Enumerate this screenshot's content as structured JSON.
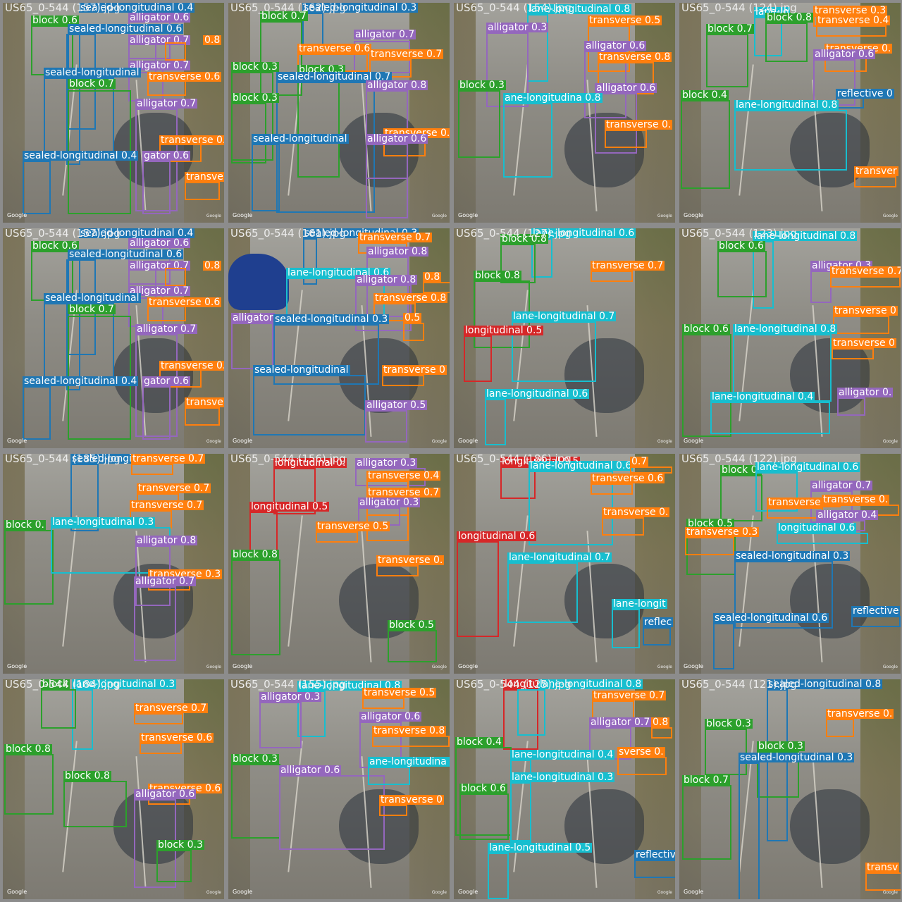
{
  "colors": {
    "block": "#2ca02c",
    "alligator": "#9467bd",
    "transverse": "#ff7f0e",
    "sealed-longitudinal": "#1f77b4",
    "lane-longitudinal": "#17becf",
    "longitudinal": "#d62728",
    "reflective": "#1f77b4"
  },
  "watermark": "Google",
  "tiles": [
    {
      "title": "US65_0-544 (157).jpg",
      "detections": [
        {
          "cls": "block",
          "text": "block 0.6"
        },
        {
          "cls": "sealed-longitudinal",
          "text": "sealed-longitudinal 0.4"
        },
        {
          "cls": "alligator",
          "text": "alligator 0.6"
        },
        {
          "cls": "sealed-longitudinal",
          "text": "sealed-longitudinal 0.6"
        },
        {
          "cls": "alligator",
          "text": "alligator 0.7"
        },
        {
          "cls": "transverse",
          "text": "0.8"
        },
        {
          "cls": "alligator",
          "text": "alligator 0.7"
        },
        {
          "cls": "sealed-longitudinal",
          "text": "sealed-longitudinal"
        },
        {
          "cls": "transverse",
          "text": "transverse 0.6"
        },
        {
          "cls": "block",
          "text": "block 0.7"
        },
        {
          "cls": "alligator",
          "text": "alligator 0.7"
        },
        {
          "cls": "transverse",
          "text": "transverse 0."
        },
        {
          "cls": "sealed-longitudinal",
          "text": "sealed-longitudinal 0.4"
        },
        {
          "cls": "alligator",
          "text": "gator 0.6"
        },
        {
          "cls": "transverse",
          "text": "transve"
        }
      ]
    },
    {
      "title": "US65_0-544 (162).jpg",
      "detections": [
        {
          "cls": "sealed-longitudinal",
          "text": "sealed-longitudinal 0.3"
        },
        {
          "cls": "block",
          "text": "block 0.7"
        },
        {
          "cls": "alligator",
          "text": "alligator 0.7"
        },
        {
          "cls": "transverse",
          "text": "transverse 0.6"
        },
        {
          "cls": "transverse",
          "text": "transverse 0.7"
        },
        {
          "cls": "block",
          "text": "block 0.3"
        },
        {
          "cls": "block",
          "text": "block 0.3"
        },
        {
          "cls": "sealed-longitudinal",
          "text": "sealed-longitudinal 0.7"
        },
        {
          "cls": "alligator",
          "text": "alligator 0.8"
        },
        {
          "cls": "block",
          "text": "block 0.3"
        },
        {
          "cls": "transverse",
          "text": "transverse 0."
        },
        {
          "cls": "sealed-longitudinal",
          "text": "sealed-longitudinal"
        },
        {
          "cls": "alligator",
          "text": "alligator 0.6"
        }
      ]
    },
    {
      "title": "US65_0-544 (154).jpg",
      "detections": [
        {
          "cls": "lane-longitudinal",
          "text": "lane-longitudinal 0.8"
        },
        {
          "cls": "alligator",
          "text": "alligator 0.3"
        },
        {
          "cls": "transverse",
          "text": "transverse 0.5"
        },
        {
          "cls": "alligator",
          "text": "alligator 0.6"
        },
        {
          "cls": "transverse",
          "text": "transverse 0.8"
        },
        {
          "cls": "block",
          "text": "block 0.3"
        },
        {
          "cls": "alligator",
          "text": "alligator 0.6"
        },
        {
          "cls": "lane-longitudinal",
          "text": "ane-longitudina 0.8"
        },
        {
          "cls": "transverse",
          "text": "transverse 0."
        }
      ]
    },
    {
      "title": "US65_0-544 (124).jpg",
      "detections": [
        {
          "cls": "transverse",
          "text": "transverse 0.3"
        },
        {
          "cls": "lane-longitudinal",
          "text": "lane-lo"
        },
        {
          "cls": "block",
          "text": "block 0.7"
        },
        {
          "cls": "transverse",
          "text": "transverse 0.4"
        },
        {
          "cls": "block",
          "text": "block 0.8"
        },
        {
          "cls": "transverse",
          "text": "transverse 0."
        },
        {
          "cls": "alligator",
          "text": "alligator 0.6"
        },
        {
          "cls": "reflective",
          "text": "reflective 0"
        },
        {
          "cls": "block",
          "text": "block 0.4"
        },
        {
          "cls": "lane-longitudinal",
          "text": "lane-longitudinal 0.8"
        },
        {
          "cls": "transverse",
          "text": "transver"
        }
      ]
    },
    {
      "title": "US65_0-544 (157).jpg",
      "detections": [
        {
          "cls": "block",
          "text": "block 0.6"
        },
        {
          "cls": "sealed-longitudinal",
          "text": "sealed-longitudinal 0.4"
        },
        {
          "cls": "alligator",
          "text": "alligator 0.6"
        },
        {
          "cls": "sealed-longitudinal",
          "text": "sealed-longitudinal 0.6"
        },
        {
          "cls": "alligator",
          "text": "alligator 0.7"
        },
        {
          "cls": "transverse",
          "text": "0.8"
        },
        {
          "cls": "alligator",
          "text": "alligator 0.7"
        },
        {
          "cls": "sealed-longitudinal",
          "text": "sealed-longitudinal"
        },
        {
          "cls": "transverse",
          "text": "transverse 0.6"
        },
        {
          "cls": "block",
          "text": "block 0.7"
        },
        {
          "cls": "alligator",
          "text": "alligator 0.7"
        },
        {
          "cls": "transverse",
          "text": "transverse 0."
        },
        {
          "cls": "sealed-longitudinal",
          "text": "sealed-longitudinal 0.4"
        },
        {
          "cls": "alligator",
          "text": "gator 0.6"
        },
        {
          "cls": "transverse",
          "text": "transve"
        }
      ]
    },
    {
      "title": "US65_0-544 (161).jpg",
      "detections": [
        {
          "cls": "sealed-longitudinal",
          "text": "sealed-longitudinal 0.3"
        },
        {
          "cls": "transverse",
          "text": "transverse 0.7"
        },
        {
          "cls": "alligator",
          "text": "alligator 0.8"
        },
        {
          "cls": "lane-longitudinal",
          "text": "lane-longitudinal 0.6"
        },
        {
          "cls": "alligator",
          "text": "alligator 0.8"
        },
        {
          "cls": "transverse",
          "text": "0.8"
        },
        {
          "cls": "transverse",
          "text": "transverse 0.8"
        },
        {
          "cls": "alligator",
          "text": "alligator"
        },
        {
          "cls": "sealed-longitudinal",
          "text": "sealed-longitudinal 0.3"
        },
        {
          "cls": "transverse",
          "text": "0.5"
        },
        {
          "cls": "sealed-longitudinal",
          "text": "sealed-longitudinal"
        },
        {
          "cls": "transverse",
          "text": "transverse 0"
        },
        {
          "cls": "alligator",
          "text": "alligator 0.5"
        }
      ]
    },
    {
      "title": "US65_0-544 (127).jpg",
      "detections": [
        {
          "cls": "lane-longitudinal",
          "text": "lane-longitudinal 0.6"
        },
        {
          "cls": "block",
          "text": "block 0.8"
        },
        {
          "cls": "transverse",
          "text": "transverse 0.7"
        },
        {
          "cls": "block",
          "text": "block 0.8"
        },
        {
          "cls": "lane-longitudinal",
          "text": "lane-longitudinal 0.7"
        },
        {
          "cls": "longitudinal",
          "text": "longitudinal 0.5"
        },
        {
          "cls": "lane-longitudinal",
          "text": "lane-longitudinal 0.6"
        }
      ]
    },
    {
      "title": "US65_0-544 (123).jpg",
      "detections": [
        {
          "cls": "lane-longitudinal",
          "text": "lane-longitudinal 0.8"
        },
        {
          "cls": "block",
          "text": "block 0.6"
        },
        {
          "cls": "alligator",
          "text": "alligator 0.3"
        },
        {
          "cls": "transverse",
          "text": "transverse 0.7"
        },
        {
          "cls": "transverse",
          "text": "transverse 0"
        },
        {
          "cls": "block",
          "text": "block 0.6"
        },
        {
          "cls": "lane-longitudinal",
          "text": "lane-longitudinal 0.8"
        },
        {
          "cls": "transverse",
          "text": "transverse 0"
        },
        {
          "cls": "lane-longitudinal",
          "text": "lane-longitudinal 0.4"
        },
        {
          "cls": "alligator",
          "text": "alligator 0."
        }
      ]
    },
    {
      "title": "US65_0-544 (185).jpg",
      "detections": [
        {
          "cls": "sealed-longitudinal",
          "text": "sealed-longitudinal 0.3"
        },
        {
          "cls": "transverse",
          "text": "transverse 0.7"
        },
        {
          "cls": "transverse",
          "text": "transverse 0.7"
        },
        {
          "cls": "transverse",
          "text": "transverse 0.7"
        },
        {
          "cls": "block",
          "text": "block 0."
        },
        {
          "cls": "lane-longitudinal",
          "text": "lane-longitudinal 0.3"
        },
        {
          "cls": "alligator",
          "text": "alligator 0.8"
        },
        {
          "cls": "transverse",
          "text": "transverse 0.3"
        },
        {
          "cls": "alligator",
          "text": "alligator 0.7"
        }
      ]
    },
    {
      "title": "US65_0-544 (156).jpg",
      "detections": [
        {
          "cls": "longitudinal",
          "text": "longitudinal 0."
        },
        {
          "cls": "alligator",
          "text": "alligator 0.3"
        },
        {
          "cls": "transverse",
          "text": "transverse 0.4"
        },
        {
          "cls": "transverse",
          "text": "transverse 0.7"
        },
        {
          "cls": "alligator",
          "text": "alligator 0.3"
        },
        {
          "cls": "longitudinal",
          "text": "longitudinal 0.5"
        },
        {
          "cls": "transverse",
          "text": "transverse 0.5"
        },
        {
          "cls": "block",
          "text": "block 0.8"
        },
        {
          "cls": "transverse",
          "text": "transverse 0."
        },
        {
          "cls": "block",
          "text": "block 0.5"
        }
      ]
    },
    {
      "title": "US65_0-544 (186).jpg",
      "detections": [
        {
          "cls": "longitudinal",
          "text": "longitudinal 0.5"
        },
        {
          "cls": "lane-longitudinal",
          "text": "lane-longitudinal 0.6"
        },
        {
          "cls": "transverse",
          "text": "0.7"
        },
        {
          "cls": "transverse",
          "text": "transverse 0.6"
        },
        {
          "cls": "transverse",
          "text": "transverse 0."
        },
        {
          "cls": "longitudinal",
          "text": "longitudinal 0.6"
        },
        {
          "cls": "lane-longitudinal",
          "text": "lane-longitudinal 0.7"
        },
        {
          "cls": "lane-longitudinal",
          "text": "lane-longit"
        },
        {
          "cls": "reflective",
          "text": "reflec"
        }
      ]
    },
    {
      "title": "US65_0-544 (122).jpg",
      "detections": [
        {
          "cls": "block",
          "text": "block 0."
        },
        {
          "cls": "lane-longitudinal",
          "text": "lane-longitudinal 0.6"
        },
        {
          "cls": "alligator",
          "text": "alligator 0.7"
        },
        {
          "cls": "transverse",
          "text": "transverse 0.5"
        },
        {
          "cls": "transverse",
          "text": "transverse 0."
        },
        {
          "cls": "alligator",
          "text": "alligator 0.4"
        },
        {
          "cls": "block",
          "text": "block 0.5"
        },
        {
          "cls": "transverse",
          "text": "transverse 0.3"
        },
        {
          "cls": "lane-longitudinal",
          "text": "longitudinal 0.6"
        },
        {
          "cls": "sealed-longitudinal",
          "text": "sealed-longitudinal 0.3"
        },
        {
          "cls": "reflective",
          "text": "reflective"
        },
        {
          "cls": "sealed-longitudinal",
          "text": "sealed-longitudinal 0.6"
        }
      ]
    },
    {
      "title": "US65_0-544 (184).jpg",
      "detections": [
        {
          "cls": "lane-longitudinal",
          "text": "lane-longitudinal 0.3"
        },
        {
          "cls": "block",
          "text": "block"
        },
        {
          "cls": "transverse",
          "text": "transverse 0.7"
        },
        {
          "cls": "transverse",
          "text": "transverse 0.6"
        },
        {
          "cls": "block",
          "text": "block 0.8"
        },
        {
          "cls": "block",
          "text": "block 0.8"
        },
        {
          "cls": "transverse",
          "text": "transverse 0.6"
        },
        {
          "cls": "alligator",
          "text": "alligator 0.6"
        },
        {
          "cls": "block",
          "text": "block 0.3"
        }
      ]
    },
    {
      "title": "US65_0-544 (155).jpg",
      "detections": [
        {
          "cls": "lane-longitudinal",
          "text": "lane-longitudinal 0.8"
        },
        {
          "cls": "alligator",
          "text": "alligator 0.3"
        },
        {
          "cls": "transverse",
          "text": "transverse 0.5"
        },
        {
          "cls": "alligator",
          "text": "alligator 0.6"
        },
        {
          "cls": "transverse",
          "text": "transverse 0.8"
        },
        {
          "cls": "block",
          "text": "block 0.3"
        },
        {
          "cls": "alligator",
          "text": "alligator 0.6"
        },
        {
          "cls": "lane-longitudinal",
          "text": "ane-longitudina 0.8"
        },
        {
          "cls": "transverse",
          "text": "transverse 0"
        }
      ]
    },
    {
      "title": "US65_0-544 (125).jpg",
      "detections": [
        {
          "cls": "longitudinal",
          "text": "longitudinal 0.7"
        },
        {
          "cls": "lane-longitudinal",
          "text": "lane-longitudinal 0.8"
        },
        {
          "cls": "transverse",
          "text": "transverse 0.7"
        },
        {
          "cls": "alligator",
          "text": "alligator 0.7"
        },
        {
          "cls": "transverse",
          "text": "0.8"
        },
        {
          "cls": "block",
          "text": "block 0.4"
        },
        {
          "cls": "lane-longitudinal",
          "text": "lane-longitudinal 0.4"
        },
        {
          "cls": "transverse",
          "text": "sverse 0."
        },
        {
          "cls": "lane-longitudinal",
          "text": "lane-longitudinal 0.3"
        },
        {
          "cls": "block",
          "text": "block 0.6"
        },
        {
          "cls": "lane-longitudinal",
          "text": "lane-longitudinal 0.5"
        },
        {
          "cls": "reflective",
          "text": "reflectiv"
        }
      ]
    },
    {
      "title": "US65_0-544 (121).jpg",
      "detections": [
        {
          "cls": "sealed-longitudinal",
          "text": "sealed-longitudinal 0.8"
        },
        {
          "cls": "transverse",
          "text": "transverse 0."
        },
        {
          "cls": "block",
          "text": "block 0.3"
        },
        {
          "cls": "block",
          "text": "block 0.3"
        },
        {
          "cls": "sealed-longitudinal",
          "text": "sealed-longitudinal 0.3"
        },
        {
          "cls": "block",
          "text": "block 0.7"
        },
        {
          "cls": "transverse",
          "text": "transv"
        }
      ]
    }
  ]
}
